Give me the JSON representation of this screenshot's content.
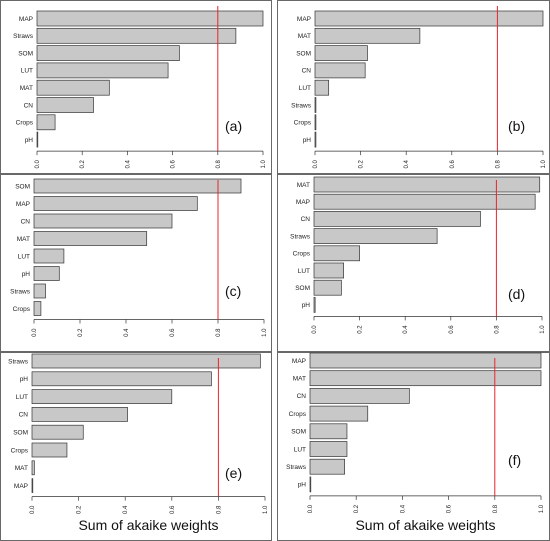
{
  "chart_data": [
    {
      "type": "bar",
      "panel_tag": "(a)",
      "categories": [
        "MAP",
        "Straws",
        "SOM",
        "LUT",
        "MAT",
        "CN",
        "Crops",
        "pH"
      ],
      "values": [
        1.0,
        0.88,
        0.63,
        0.58,
        0.32,
        0.25,
        0.08,
        0.0
      ],
      "xlim": [
        0,
        1
      ],
      "xticks": [
        "0.0",
        "0.2",
        "0.4",
        "0.6",
        "0.8",
        "1.0"
      ],
      "reference_line": 0.8,
      "xlabel": ""
    },
    {
      "type": "bar",
      "panel_tag": "(b)",
      "categories": [
        "MAP",
        "MAT",
        "SOM",
        "CN",
        "LUT",
        "Straws",
        "Crops",
        "pH"
      ],
      "values": [
        1.0,
        0.46,
        0.23,
        0.22,
        0.06,
        0.004,
        0.004,
        0.004
      ],
      "xlim": [
        0,
        1
      ],
      "xticks": [
        "0.0",
        "0.2",
        "0.4",
        "0.6",
        "0.8",
        "1.0"
      ],
      "reference_line": 0.8,
      "xlabel": ""
    },
    {
      "type": "bar",
      "panel_tag": "(c)",
      "categories": [
        "SOM",
        "MAP",
        "CN",
        "MAT",
        "LUT",
        "pH",
        "Straws",
        "Crops"
      ],
      "values": [
        0.9,
        0.71,
        0.6,
        0.49,
        0.13,
        0.11,
        0.05,
        0.03
      ],
      "xlim": [
        0,
        1
      ],
      "xticks": [
        "0.0",
        "0.2",
        "0.4",
        "0.6",
        "0.8",
        "1.0"
      ],
      "reference_line": 0.8,
      "xlabel": ""
    },
    {
      "type": "bar",
      "panel_tag": "(d)",
      "categories": [
        "MAT",
        "MAP",
        "CN",
        "Straws",
        "Crops",
        "LUT",
        "SOM",
        "pH"
      ],
      "values": [
        0.99,
        0.97,
        0.73,
        0.54,
        0.2,
        0.13,
        0.12,
        0.005
      ],
      "xlim": [
        0,
        1
      ],
      "xticks": [
        "0.0",
        "0.2",
        "0.4",
        "0.6",
        "0.8",
        "1.0"
      ],
      "reference_line": 0.8,
      "xlabel": ""
    },
    {
      "type": "bar",
      "panel_tag": "(e)",
      "categories": [
        "Straws",
        "pH",
        "LUT",
        "CN",
        "SOM",
        "Crops",
        "MAT",
        "MAP"
      ],
      "values": [
        0.98,
        0.77,
        0.6,
        0.41,
        0.22,
        0.15,
        0.01,
        0.003
      ],
      "xlim": [
        0,
        1
      ],
      "xticks": [
        "0.0",
        "0.2",
        "0.4",
        "0.6",
        "0.8",
        "1.0"
      ],
      "reference_line": 0.8,
      "xlabel": "Sum of akaike weights"
    },
    {
      "type": "bar",
      "panel_tag": "(f)",
      "categories": [
        "MAP",
        "MAT",
        "CN",
        "Crops",
        "SOM",
        "LUT",
        "Straws",
        "pH"
      ],
      "values": [
        1.0,
        1.0,
        0.43,
        0.25,
        0.16,
        0.16,
        0.15,
        0.0
      ],
      "xlim": [
        0,
        1
      ],
      "xticks": [
        "0.0",
        "0.2",
        "0.4",
        "0.6",
        "0.8",
        "1.0"
      ],
      "reference_line": 0.8,
      "xlabel": "Sum of akaike weights"
    }
  ],
  "colors": {
    "bar_fill": "#c8c8c8",
    "bar_stroke": "#333333",
    "reference_line": "#e8262a"
  }
}
